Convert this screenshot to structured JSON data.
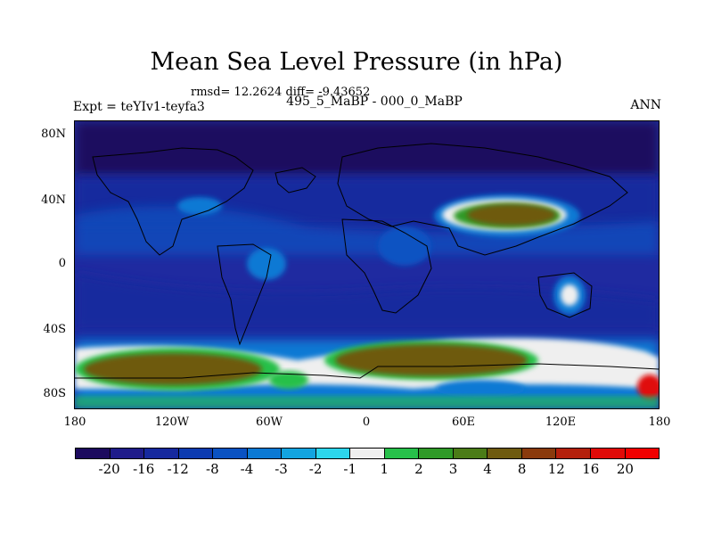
{
  "title": "Mean Sea Level Pressure (in hPa)",
  "stats": "rmsd= 12.2624 diff= -9.43652",
  "subtitle_left": "Expt = teYIv1-teyfa3",
  "subtitle_center": "495_5_MaBP - 000_0_MaBP",
  "subtitle_right": "ANN",
  "lat_labels": [
    "80N",
    "40N",
    "0",
    "40S",
    "80S"
  ],
  "lon_labels": [
    "180",
    "120W",
    "60W",
    "0",
    "60E",
    "120E",
    "180"
  ],
  "colorbar": {
    "labels": [
      "-20",
      "-16",
      "-12",
      "-8",
      "-4",
      "-3",
      "-2",
      "-1",
      "1",
      "2",
      "3",
      "4",
      "8",
      "12",
      "16",
      "20"
    ],
    "colors": [
      "#1c0a5e",
      "#1f1c8a",
      "#16299e",
      "#0d3bb0",
      "#0a52c2",
      "#0b79d4",
      "#13a4e0",
      "#2dd6ec",
      "#efefef",
      "#27c04a",
      "#2f9a28",
      "#4b7c18",
      "#6e5a10",
      "#8a3a0c",
      "#b4200c",
      "#e00a08",
      "#f00000"
    ]
  },
  "colors": {
    "background": "#2a2ca0",
    "polar": "#1c0a5e",
    "deep_blue": "#16299e",
    "mid_blue": "#0a52c2",
    "light_blue": "#0b79d4",
    "cyan": "#2dd6ec",
    "white": "#efefef",
    "green": "#27c04a",
    "olive": "#4b7c18",
    "brown": "#6e5a10",
    "red": "#e00a08"
  }
}
